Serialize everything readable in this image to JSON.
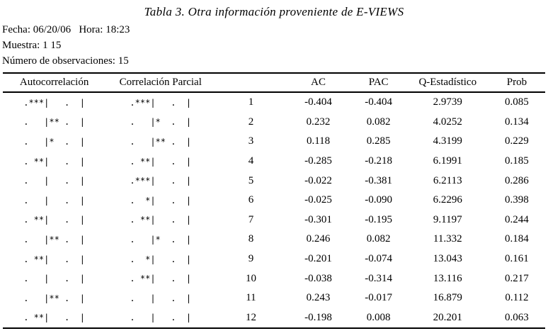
{
  "title": "Tabla 3. Otra información proveniente de E-VIEWS",
  "meta": {
    "fecha_line": "Fecha: 06/20/06   Hora: 18:23",
    "muestra_line": "Muestra: 1 15",
    "observaciones_line": "Número de observaciones: 15"
  },
  "table": {
    "headers": {
      "autocorrelation": "Autocorrelación",
      "partial_correlation": "Correlación Parcial",
      "lag": "",
      "ac": "AC",
      "pac": "PAC",
      "q_stat": "Q-Estadístico",
      "prob": "Prob"
    },
    "rows": [
      {
        "ac_bar": ".***|   .  |",
        "pac_bar": ".***|   .  |",
        "lag": "1",
        "ac": "-0.404",
        "pac": "-0.404",
        "q_stat": "2.9739",
        "prob": "0.085"
      },
      {
        "ac_bar": ".   |** .  |",
        "pac_bar": ".   |*  .  |",
        "lag": "2",
        "ac": "0.232",
        "pac": "0.082",
        "q_stat": "4.0252",
        "prob": "0.134"
      },
      {
        "ac_bar": ".   |*  .  |",
        "pac_bar": ".   |** .  |",
        "lag": "3",
        "ac": "0.118",
        "pac": "0.285",
        "q_stat": "4.3199",
        "prob": "0.229"
      },
      {
        "ac_bar": ". **|   .  |",
        "pac_bar": ". **|   .  |",
        "lag": "4",
        "ac": "-0.285",
        "pac": "-0.218",
        "q_stat": "6.1991",
        "prob": "0.185"
      },
      {
        "ac_bar": ".   |   .  |",
        "pac_bar": ".***|   .  |",
        "lag": "5",
        "ac": "-0.022",
        "pac": "-0.381",
        "q_stat": "6.2113",
        "prob": "0.286"
      },
      {
        "ac_bar": ".   |   .  |",
        "pac_bar": ".  *|   .  |",
        "lag": "6",
        "ac": "-0.025",
        "pac": "-0.090",
        "q_stat": "6.2296",
        "prob": "0.398"
      },
      {
        "ac_bar": ". **|   .  |",
        "pac_bar": ". **|   .  |",
        "lag": "7",
        "ac": "-0.301",
        "pac": "-0.195",
        "q_stat": "9.1197",
        "prob": "0.244"
      },
      {
        "ac_bar": ".   |** .  |",
        "pac_bar": ".   |*  .  |",
        "lag": "8",
        "ac": "0.246",
        "pac": "0.082",
        "q_stat": "11.332",
        "prob": "0.184"
      },
      {
        "ac_bar": ". **|   .  |",
        "pac_bar": ".  *|   .  |",
        "lag": "9",
        "ac": "-0.201",
        "pac": "-0.074",
        "q_stat": "13.043",
        "prob": "0.161"
      },
      {
        "ac_bar": ".   |   .  |",
        "pac_bar": ". **|   .  |",
        "lag": "10",
        "ac": "-0.038",
        "pac": "-0.314",
        "q_stat": "13.116",
        "prob": "0.217"
      },
      {
        "ac_bar": ".   |** .  |",
        "pac_bar": ".   |   .  |",
        "lag": "11",
        "ac": "0.243",
        "pac": "-0.017",
        "q_stat": "16.879",
        "prob": "0.112"
      },
      {
        "ac_bar": ". **|   .  |",
        "pac_bar": ".   |   .  |",
        "lag": "12",
        "ac": "-0.198",
        "pac": "0.008",
        "q_stat": "20.201",
        "prob": "0.063"
      }
    ]
  }
}
